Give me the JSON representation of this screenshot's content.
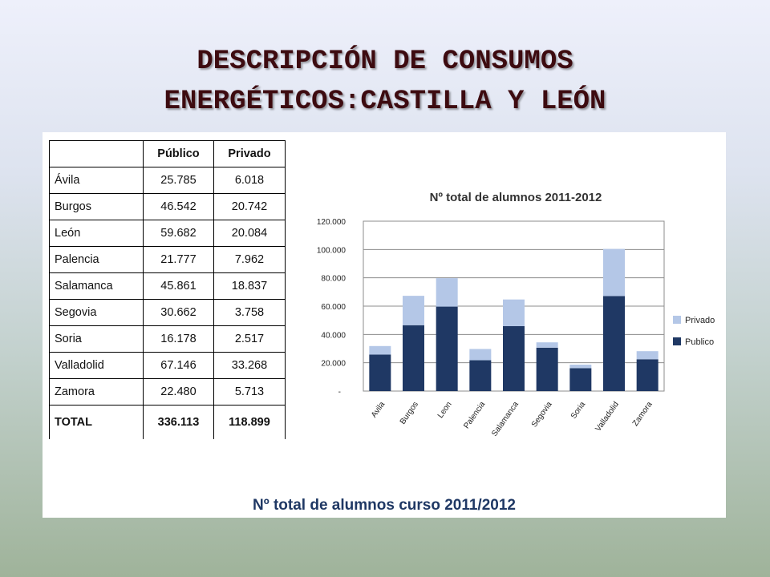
{
  "slide": {
    "title_line1": "DESCRIPCIÓN DE CONSUMOS",
    "title_line2": "ENERGÉTICOS:CASTILLA Y LEÓN",
    "caption": "Nº total de alumnos curso 2011/2012"
  },
  "table": {
    "headers": [
      "",
      "Público",
      "Privado"
    ],
    "rows": [
      {
        "name": "Ávila",
        "publico": "25.785",
        "privado": "6.018"
      },
      {
        "name": "Burgos",
        "publico": "46.542",
        "privado": "20.742"
      },
      {
        "name": "León",
        "publico": "59.682",
        "privado": "20.084"
      },
      {
        "name": "Palencia",
        "publico": "21.777",
        "privado": "7.962"
      },
      {
        "name": "Salamanca",
        "publico": "45.861",
        "privado": "18.837"
      },
      {
        "name": "Segovia",
        "publico": "30.662",
        "privado": "3.758"
      },
      {
        "name": "Soria",
        "publico": "16.178",
        "privado": "2.517"
      },
      {
        "name": "Valladolid",
        "publico": "67.146",
        "privado": "33.268"
      },
      {
        "name": "Zamora",
        "publico": "22.480",
        "privado": "5.713"
      }
    ],
    "total": {
      "name": "TOTAL",
      "publico": "336.113",
      "privado": "118.899"
    }
  },
  "chart_data": {
    "type": "bar",
    "stacked": true,
    "title": "Nº total de alumnos 2011-2012",
    "categories": [
      "Avila",
      "Burgos",
      "Leon",
      "Palencia",
      "Salamanca",
      "Segovia",
      "Soria",
      "Valladolid",
      "Zamora"
    ],
    "series": [
      {
        "name": "Publico",
        "color": "#1f3864",
        "values": [
          25785,
          46542,
          59682,
          21777,
          45861,
          30662,
          16178,
          67146,
          22480
        ]
      },
      {
        "name": "Privado",
        "color": "#b4c7e7",
        "values": [
          6018,
          20742,
          20084,
          7962,
          18837,
          3758,
          2517,
          33268,
          5713
        ]
      }
    ],
    "y_ticks": [
      "-",
      "20.000",
      "40.000",
      "60.000",
      "80.000",
      "100.000",
      "120.000"
    ],
    "ylim": [
      0,
      120000
    ],
    "grid": true,
    "legend_position": "right",
    "legend_order": [
      "Privado",
      "Publico"
    ]
  }
}
